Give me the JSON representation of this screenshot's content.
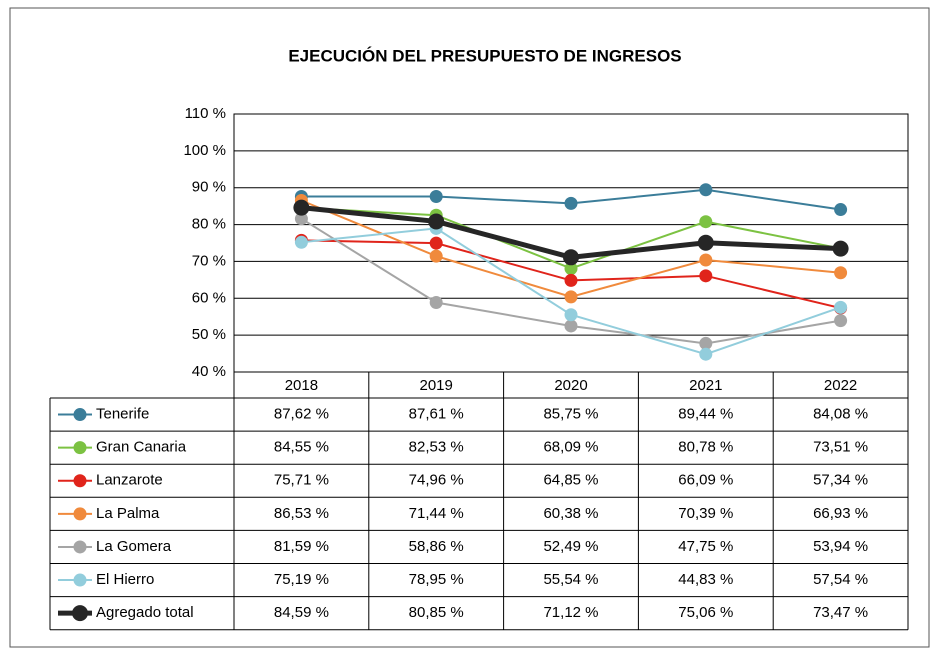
{
  "chart_data": {
    "type": "line",
    "title": "EJECUCIÓN DEL PRESUPUESTO DE INGRESOS",
    "categories": [
      "2018",
      "2019",
      "2020",
      "2021",
      "2022"
    ],
    "ylim": [
      40,
      110
    ],
    "yticks": [
      {
        "value": 40,
        "label": "40 %"
      },
      {
        "value": 50,
        "label": "50 %"
      },
      {
        "value": 60,
        "label": "60 %"
      },
      {
        "value": 70,
        "label": "70 %"
      },
      {
        "value": 80,
        "label": "80 %"
      },
      {
        "value": 90,
        "label": "90 %"
      },
      {
        "value": 100,
        "label": "100 %"
      },
      {
        "value": 110,
        "label": "110 %"
      }
    ],
    "grid": true,
    "series": [
      {
        "name": "Tenerife",
        "color": "#3b7d99",
        "values": [
          87.62,
          87.61,
          85.75,
          89.44,
          84.08
        ],
        "value_labels": [
          "87,62 %",
          "87,61 %",
          "85,75 %",
          "89,44 %",
          "84,08 %"
        ]
      },
      {
        "name": "Gran Canaria",
        "color": "#7cc242",
        "values": [
          84.55,
          82.53,
          68.09,
          80.78,
          73.51
        ],
        "value_labels": [
          "84,55 %",
          "82,53 %",
          "68,09 %",
          "80,78 %",
          "73,51 %"
        ]
      },
      {
        "name": "Lanzarote",
        "color": "#e0241b",
        "values": [
          75.71,
          74.96,
          64.85,
          66.09,
          57.34
        ],
        "value_labels": [
          "75,71 %",
          "74,96 %",
          "64,85 %",
          "66,09 %",
          "57,34 %"
        ]
      },
      {
        "name": "La Palma",
        "color": "#f08a3c",
        "values": [
          86.53,
          71.44,
          60.38,
          70.39,
          66.93
        ],
        "value_labels": [
          "86,53 %",
          "71,44 %",
          "60,38 %",
          "70,39 %",
          "66,93 %"
        ]
      },
      {
        "name": "La Gomera",
        "color": "#a5a5a5",
        "values": [
          81.59,
          58.86,
          52.49,
          47.75,
          53.94
        ],
        "value_labels": [
          "81,59 %",
          "58,86 %",
          "52,49 %",
          "47,75 %",
          "53,94 %"
        ]
      },
      {
        "name": "El Hierro",
        "color": "#92cddc",
        "values": [
          75.19,
          78.95,
          55.54,
          44.83,
          57.54
        ],
        "value_labels": [
          "75,19 %",
          "78,95 %",
          "55,54 %",
          "44,83 %",
          "57,54 %"
        ]
      },
      {
        "name": "Agregado total",
        "color": "#262626",
        "values": [
          84.59,
          80.85,
          71.12,
          75.06,
          73.47
        ],
        "value_labels": [
          "84,59 %",
          "80,85 %",
          "71,12 %",
          "75,06 %",
          "73,47 %"
        ]
      }
    ]
  }
}
